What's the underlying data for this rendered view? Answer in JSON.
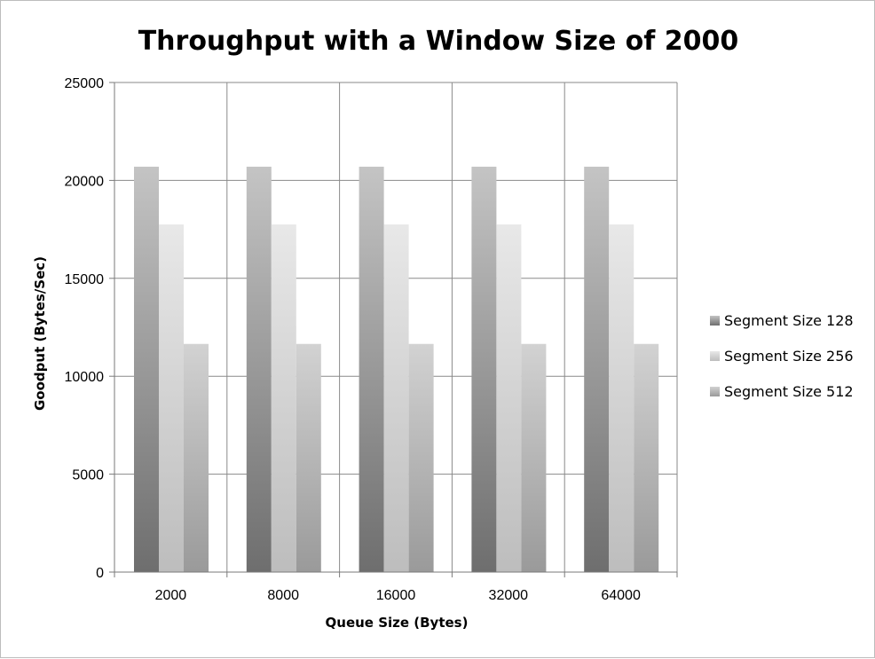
{
  "chart_data": {
    "type": "bar",
    "title": "Throughput with a Window Size of 2000",
    "xlabel": "Queue Size (Bytes)",
    "ylabel": "Goodput (Bytes/Sec)",
    "categories": [
      "2000",
      "8000",
      "16000",
      "32000",
      "64000"
    ],
    "series": [
      {
        "name": "Segment Size 128",
        "values": [
          20700,
          20700,
          20700,
          20700,
          20700
        ]
      },
      {
        "name": "Segment Size 256",
        "values": [
          17750,
          17750,
          17750,
          17750,
          17750
        ]
      },
      {
        "name": "Segment Size 512",
        "values": [
          11650,
          11650,
          11650,
          11650,
          11650
        ]
      }
    ],
    "ylim": [
      0,
      25000
    ],
    "yticks": [
      0,
      5000,
      10000,
      15000,
      20000,
      25000
    ],
    "grid": true,
    "legend_position": "right"
  }
}
